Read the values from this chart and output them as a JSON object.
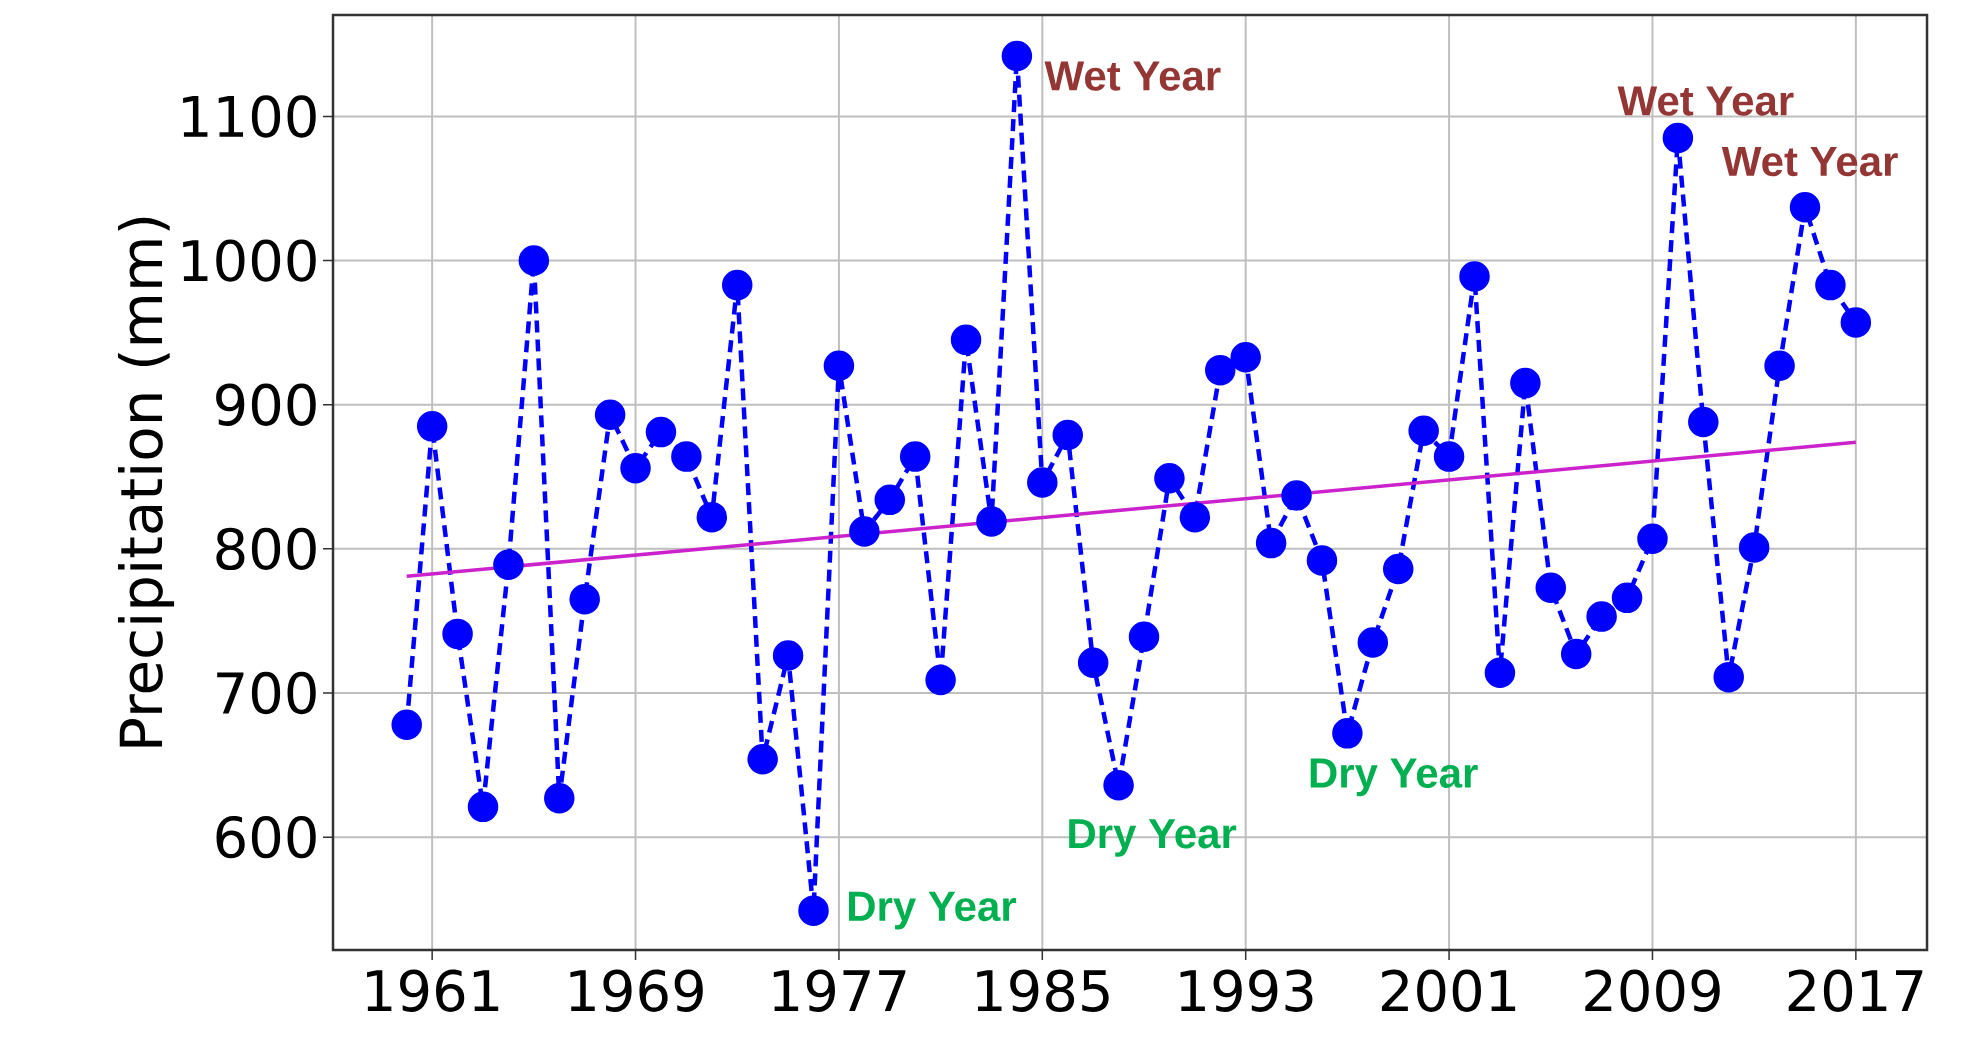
{
  "chart_data": {
    "type": "line",
    "ylabel": "Precipitation (mm)",
    "x": [
      1960,
      1961,
      1962,
      1963,
      1964,
      1965,
      1966,
      1967,
      1968,
      1969,
      1970,
      1971,
      1972,
      1973,
      1974,
      1975,
      1976,
      1977,
      1978,
      1979,
      1980,
      1981,
      1982,
      1983,
      1984,
      1985,
      1986,
      1987,
      1988,
      1989,
      1990,
      1991,
      1992,
      1993,
      1994,
      1995,
      1996,
      1997,
      1998,
      1999,
      2000,
      2001,
      2002,
      2003,
      2004,
      2005,
      2006,
      2007,
      2008,
      2009,
      2010,
      2011,
      2012,
      2013,
      2014,
      2015,
      2016,
      2017
    ],
    "series": [
      {
        "color": "#0000ff",
        "marker": "circle",
        "line_style": "dashed",
        "values": [
          678,
          885,
          741,
          621,
          789,
          1000,
          627,
          765,
          893,
          856,
          881,
          864,
          822,
          983,
          654,
          726,
          549,
          927,
          812,
          834,
          864,
          709,
          945,
          819,
          1142,
          846,
          879,
          721,
          636,
          739,
          849,
          822,
          924,
          933,
          804,
          837,
          792,
          672,
          735,
          786,
          882,
          864,
          989,
          714,
          915,
          773,
          727,
          753,
          766,
          807,
          1085,
          888,
          711,
          801,
          927,
          1037,
          983,
          957
        ]
      },
      {
        "type": "line",
        "color": "#cc22cc",
        "marker": "none",
        "line_style": "solid",
        "x": [
          1960,
          2017
        ],
        "values": [
          781,
          874
        ]
      }
    ],
    "xlim": [
      1957.1,
      2019.8
    ],
    "ylim": [
      521.7,
      1170.4
    ],
    "xticks": [
      1961,
      1969,
      1977,
      1985,
      1993,
      2001,
      2009,
      2017
    ],
    "yticks": [
      600,
      700,
      800,
      900,
      1000,
      1100
    ],
    "grid": true,
    "annotations": [
      {
        "text": "Wet Year",
        "x": 1984,
        "y": 1142
      },
      {
        "text": "Dry Year",
        "x": 1976,
        "y": 549
      },
      {
        "text": "Dry Year",
        "x": 1988,
        "y": 636
      },
      {
        "text": "Dry Year",
        "x": 1997,
        "y": 672
      },
      {
        "text": "Wet Year",
        "x": 2010,
        "y": 1085
      },
      {
        "text": "Wet Year",
        "x": 2015,
        "y": 1037
      }
    ]
  }
}
